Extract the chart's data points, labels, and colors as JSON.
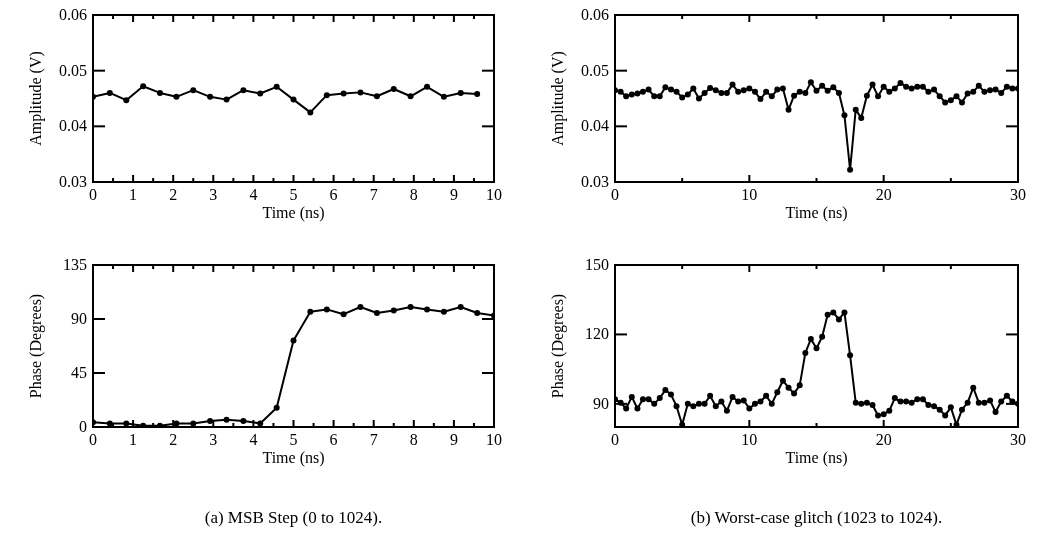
{
  "chart_data": [
    {
      "type": "line",
      "xlabel": "Time (ns)",
      "ylabel": "Amplitude (V)",
      "marker": "circle",
      "line_style": "solid",
      "grid": false,
      "x": [
        0,
        0.42,
        0.83,
        1.25,
        1.67,
        2.08,
        2.5,
        2.92,
        3.33,
        3.75,
        4.17,
        4.58,
        5,
        5.42,
        5.83,
        6.25,
        6.67,
        7.08,
        7.5,
        7.92,
        8.33,
        8.75,
        9.17,
        9.58
      ],
      "series": [
        {
          "color": "#000000",
          "values": [
            0.0453,
            0.046,
            0.0447,
            0.0472,
            0.046,
            0.0453,
            0.0465,
            0.0453,
            0.0448,
            0.0465,
            0.0459,
            0.0471,
            0.0448,
            0.0425,
            0.0456,
            0.0459,
            0.0461,
            0.0454,
            0.0467,
            0.0454,
            0.0471,
            0.0453,
            0.046,
            0.0458
          ]
        }
      ],
      "xlim": [
        0,
        10
      ],
      "xticks": [
        0,
        {
          "value": 0.5,
          "label": null
        },
        1,
        {
          "value": 1.5,
          "label": null
        },
        2,
        {
          "value": 2.5,
          "label": null
        },
        3,
        {
          "value": 3.5,
          "label": null
        },
        4,
        {
          "value": 4.5,
          "label": null
        },
        5,
        {
          "value": 5.5,
          "label": null
        },
        6,
        {
          "value": 6.5,
          "label": null
        },
        7,
        {
          "value": 7.5,
          "label": null
        },
        8,
        {
          "value": 8.5,
          "label": null
        },
        9,
        {
          "value": 9.5,
          "label": null
        },
        10
      ],
      "ylim": [
        0.03,
        0.06
      ],
      "yticks": [
        0.03,
        0.04,
        0.05,
        0.06
      ]
    },
    {
      "type": "line",
      "xlabel": "Time (ns)",
      "ylabel": "Amplitude (V)",
      "marker": "circle",
      "line_style": "solid",
      "grid": false,
      "x": [
        0,
        0.42,
        0.83,
        1.25,
        1.67,
        2.08,
        2.5,
        2.92,
        3.33,
        3.75,
        4.17,
        4.58,
        5,
        5.42,
        5.83,
        6.25,
        6.67,
        7.08,
        7.5,
        7.92,
        8.33,
        8.75,
        9.17,
        9.58,
        10,
        10.42,
        10.83,
        11.25,
        11.67,
        12.08,
        12.5,
        12.92,
        13.33,
        13.75,
        14.17,
        14.58,
        15,
        15.42,
        15.83,
        16.25,
        16.67,
        17.08,
        17.5,
        17.92,
        18.33,
        18.75,
        19.17,
        19.58,
        20,
        20.42,
        20.83,
        21.25,
        21.67,
        22.08,
        22.5,
        22.92,
        23.33,
        23.75,
        24.17,
        24.58,
        25,
        25.42,
        25.83,
        26.25,
        26.67,
        27.08,
        27.5,
        27.92,
        28.33,
        28.75,
        29.17,
        29.58,
        30
      ],
      "series": [
        {
          "color": "#000000",
          "values": [
            0.0465,
            0.0462,
            0.0454,
            0.0457,
            0.0459,
            0.0462,
            0.0466,
            0.0454,
            0.0454,
            0.047,
            0.0466,
            0.0462,
            0.0452,
            0.0457,
            0.0468,
            0.045,
            0.046,
            0.0469,
            0.0465,
            0.046,
            0.046,
            0.0475,
            0.0462,
            0.0465,
            0.0468,
            0.0462,
            0.0449,
            0.0462,
            0.0454,
            0.0466,
            0.0468,
            0.043,
            0.0455,
            0.0462,
            0.046,
            0.0479,
            0.0464,
            0.0473,
            0.0464,
            0.047,
            0.046,
            0.042,
            0.0322,
            0.043,
            0.0415,
            0.0455,
            0.0475,
            0.0454,
            0.0471,
            0.0462,
            0.0468,
            0.0478,
            0.0471,
            0.0468,
            0.0471,
            0.0471,
            0.0462,
            0.0466,
            0.0454,
            0.0443,
            0.0447,
            0.0454,
            0.0443,
            0.0459,
            0.0462,
            0.0473,
            0.0462,
            0.0465,
            0.0466,
            0.046,
            0.0471,
            0.0468,
            0.0468
          ]
        }
      ],
      "xlim": [
        0,
        30
      ],
      "xticks": [
        0,
        {
          "value": 5,
          "label": null
        },
        10,
        {
          "value": 15,
          "label": null
        },
        20,
        {
          "value": 25,
          "label": null
        },
        30
      ],
      "ylim": [
        0.03,
        0.06
      ],
      "yticks": [
        0.03,
        0.04,
        0.05,
        0.06
      ]
    },
    {
      "type": "line",
      "xlabel": "Time (ns)",
      "ylabel": "Phase (Degrees)",
      "marker": "circle",
      "line_style": "solid",
      "grid": false,
      "annotations": [
        "(a) MSB Step (0 to 1024)."
      ],
      "x": [
        0,
        0.42,
        0.83,
        1.25,
        1.67,
        2.08,
        2.5,
        2.92,
        3.33,
        3.75,
        4.17,
        4.58,
        5,
        5.42,
        5.83,
        6.25,
        6.67,
        7.08,
        7.5,
        7.92,
        8.33,
        8.75,
        9.17,
        9.58,
        10
      ],
      "series": [
        {
          "color": "#000000",
          "values": [
            4,
            3,
            3,
            1,
            1,
            3,
            3,
            5,
            6,
            5,
            3,
            16,
            72,
            96,
            98,
            94,
            100,
            95,
            97,
            100,
            98,
            96,
            100,
            95,
            93
          ]
        }
      ],
      "xlim": [
        0,
        10
      ],
      "xticks": [
        0,
        {
          "value": 0.5,
          "label": null
        },
        1,
        {
          "value": 1.5,
          "label": null
        },
        2,
        {
          "value": 2.5,
          "label": null
        },
        3,
        {
          "value": 3.5,
          "label": null
        },
        4,
        {
          "value": 4.5,
          "label": null
        },
        5,
        {
          "value": 5.5,
          "label": null
        },
        6,
        {
          "value": 6.5,
          "label": null
        },
        7,
        {
          "value": 7.5,
          "label": null
        },
        8,
        {
          "value": 8.5,
          "label": null
        },
        9,
        {
          "value": 9.5,
          "label": null
        },
        10
      ],
      "ylim": [
        0,
        135
      ],
      "yticks": [
        0,
        45,
        90,
        135
      ]
    },
    {
      "type": "line",
      "xlabel": "Time (ns)",
      "ylabel": "Phase (Degrees)",
      "marker": "circle",
      "line_style": "solid",
      "grid": false,
      "annotations": [
        "(b) Worst-case glitch (1023 to 1024)."
      ],
      "x": [
        0,
        0.42,
        0.83,
        1.25,
        1.67,
        2.08,
        2.5,
        2.92,
        3.33,
        3.75,
        4.17,
        4.58,
        5,
        5.42,
        5.83,
        6.25,
        6.67,
        7.08,
        7.5,
        7.92,
        8.33,
        8.75,
        9.17,
        9.58,
        10,
        10.42,
        10.83,
        11.25,
        11.67,
        12.08,
        12.5,
        12.92,
        13.33,
        13.75,
        14.17,
        14.58,
        15,
        15.42,
        15.83,
        16.25,
        16.67,
        17.08,
        17.5,
        17.92,
        18.33,
        18.75,
        19.17,
        19.58,
        20,
        20.42,
        20.83,
        21.25,
        21.67,
        22.08,
        22.5,
        22.92,
        23.33,
        23.75,
        24.17,
        24.58,
        25,
        25.42,
        25.83,
        26.25,
        26.67,
        27.08,
        27.5,
        27.92,
        28.33,
        28.75,
        29.17,
        29.58,
        30
      ],
      "series": [
        {
          "color": "#000000",
          "values": [
            92,
            90.5,
            88,
            93,
            88,
            92,
            92,
            90,
            92.5,
            96,
            94,
            89,
            81,
            90,
            89,
            90,
            90,
            93.5,
            89,
            91,
            87,
            93,
            91,
            91.5,
            88,
            90,
            91,
            93.5,
            90,
            95,
            100,
            97,
            94.5,
            98,
            112,
            118,
            114,
            119,
            128.5,
            129.5,
            126.5,
            129.5,
            111,
            90.5,
            90,
            90.5,
            89.5,
            85,
            85.5,
            87,
            92.5,
            91,
            91,
            90.5,
            92,
            92,
            89.5,
            89,
            87.5,
            85,
            88.5,
            81,
            87.5,
            90.5,
            97,
            90.5,
            90.5,
            91.5,
            86.5,
            91,
            93.5,
            91,
            90
          ]
        }
      ],
      "xlim": [
        0,
        30
      ],
      "xticks": [
        0,
        {
          "value": 5,
          "label": null
        },
        10,
        {
          "value": 15,
          "label": null
        },
        20,
        {
          "value": 25,
          "label": null
        },
        30
      ],
      "ylim": [
        80,
        150
      ],
      "yticks": [
        90,
        120,
        150
      ]
    }
  ]
}
